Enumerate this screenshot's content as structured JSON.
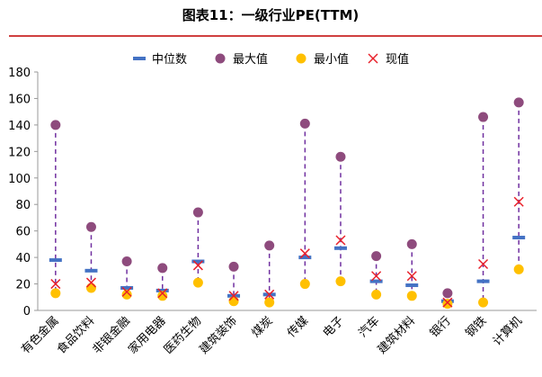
{
  "chart_data": {
    "type": "range-dot",
    "title": "图表11：一级行业PE(TTM)",
    "categories": [
      "有色金属",
      "食品饮料",
      "非银金融",
      "家用电器",
      "医药生物",
      "建筑装饰",
      "煤炭",
      "传媒",
      "电子",
      "汽车",
      "建筑材料",
      "银行",
      "钢铁",
      "计算机"
    ],
    "series": [
      {
        "name": "中位数",
        "color": "#4472c4",
        "marker": "dash",
        "values": [
          38,
          30,
          17,
          15,
          37,
          11,
          12,
          40,
          47,
          22,
          19,
          7,
          22,
          55
        ]
      },
      {
        "name": "最大值",
        "color": "#8e4b7d",
        "marker": "circle",
        "values": [
          140,
          63,
          37,
          32,
          74,
          33,
          49,
          141,
          116,
          41,
          50,
          13,
          146,
          157
        ]
      },
      {
        "name": "最小值",
        "color": "#ffc000",
        "marker": "circle",
        "values": [
          13,
          17,
          12,
          11,
          21,
          7,
          6,
          20,
          22,
          12,
          11,
          5,
          6,
          31
        ]
      },
      {
        "name": "现值",
        "color": "#e8202a",
        "marker": "x",
        "values": [
          20,
          21,
          14,
          13,
          34,
          11,
          12,
          43,
          53,
          26,
          26,
          6,
          35,
          82
        ]
      }
    ],
    "ylim": [
      0,
      180
    ],
    "yticks": [
      0,
      20,
      40,
      60,
      80,
      100,
      120,
      140,
      160,
      180
    ],
    "range_color": "#7030a0"
  }
}
